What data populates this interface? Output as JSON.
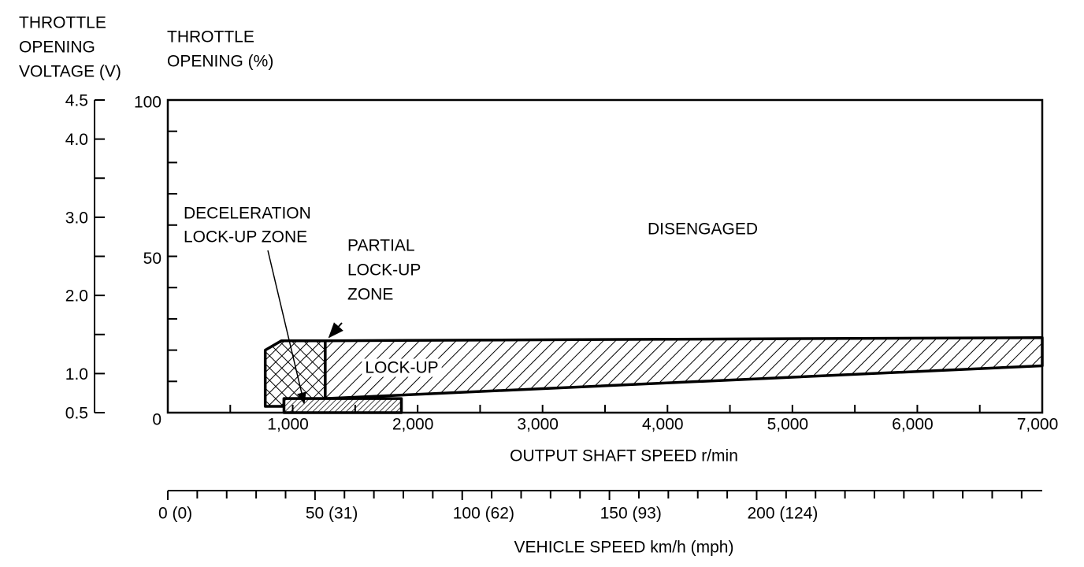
{
  "chart_data": {
    "type": "zones",
    "y2_title": [
      "THROTTLE",
      "OPENING",
      "VOLTAGE (V)"
    ],
    "y_title": [
      "THROTTLE",
      "OPENING (%)"
    ],
    "x_title": "OUTPUT SHAFT SPEED r/min",
    "x2_title": "VEHICLE SPEED km/h (mph)",
    "xlim": [
      0,
      7000
    ],
    "xticks": [
      {
        "value": 1000,
        "label": "1,000"
      },
      {
        "value": 2000,
        "label": "2,000"
      },
      {
        "value": 3000,
        "label": "3,000"
      },
      {
        "value": 4000,
        "label": "4,000"
      },
      {
        "value": 5000,
        "label": "5,000"
      },
      {
        "value": 6000,
        "label": "6,000"
      },
      {
        "value": 7000,
        "label": "7,000"
      }
    ],
    "xminor_ticks": [
      500,
      1500,
      2500,
      3500,
      4500,
      5500,
      6500
    ],
    "ylim": [
      0,
      100
    ],
    "yticks": [
      0,
      50,
      100
    ],
    "yminor_ticks": [
      10,
      20,
      30,
      40,
      60,
      70,
      80,
      90
    ],
    "y2lim": [
      0.5,
      4.5
    ],
    "y2ticks": [
      {
        "value": 0.5,
        "label": "0.5"
      },
      {
        "value": 1,
        "label": "1.0"
      },
      {
        "value": 2,
        "label": "2.0"
      },
      {
        "value": 3,
        "label": "3.0"
      },
      {
        "value": 4,
        "label": "4.0"
      },
      {
        "value": 4.5,
        "label": "4.5"
      }
    ],
    "y2minor_ticks": [
      1.5,
      2.5,
      3.5
    ],
    "x2lim": [
      0,
      297
    ],
    "x2ticks": [
      {
        "value": 0,
        "label": "0 (0)"
      },
      {
        "value": 50,
        "label": "50 (31)"
      },
      {
        "value": 100,
        "label": "100 (62)"
      },
      {
        "value": 150,
        "label": "150 (93)"
      },
      {
        "value": 200,
        "label": "200 (124)"
      }
    ],
    "x2minor_ticks": [
      10,
      20,
      30,
      40,
      60,
      70,
      80,
      90,
      110,
      120,
      130,
      140,
      160,
      170,
      180,
      190,
      210,
      220,
      230,
      240,
      250,
      260,
      270,
      280,
      290
    ],
    "zones": [
      {
        "name": [
          "LOCK-UP"
        ],
        "pattern": "hatch",
        "x": [
          1260,
          7000,
          7000,
          1260
        ],
        "y": [
          23,
          24,
          15,
          4.5
        ]
      },
      {
        "name": [
          "PARTIAL",
          "LOCK-UP",
          "ZONE"
        ],
        "pattern": "crosshatch",
        "x": [
          780,
          910,
          1260,
          1260,
          930,
          930,
          780
        ],
        "y": [
          20,
          23,
          23,
          4.5,
          4.5,
          2,
          2
        ]
      },
      {
        "name": [
          "DECELERATION",
          "LOCK-UP ZONE"
        ],
        "pattern": "fine-hatch",
        "x": [
          930,
          1870,
          1870,
          930
        ],
        "y": [
          4.5,
          4.5,
          0,
          0
        ]
      }
    ],
    "annotations": [
      "DISENGAGED"
    ]
  }
}
